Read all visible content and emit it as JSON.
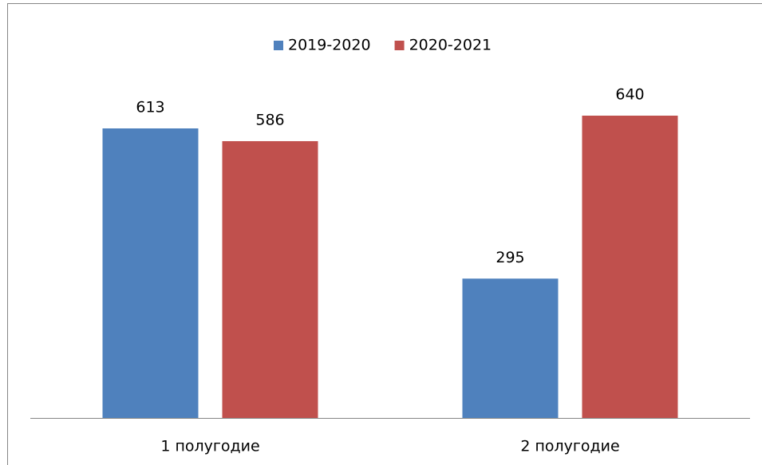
{
  "chart_data": {
    "type": "bar",
    "categories": [
      "1 полугодие",
      "2 полугодие"
    ],
    "series": [
      {
        "name": "2019-2020",
        "color": "#4f81bd",
        "values": [
          613,
          295
        ]
      },
      {
        "name": "2020-2021",
        "color": "#c0504d",
        "values": [
          586,
          640
        ]
      }
    ],
    "legend": "top"
  }
}
